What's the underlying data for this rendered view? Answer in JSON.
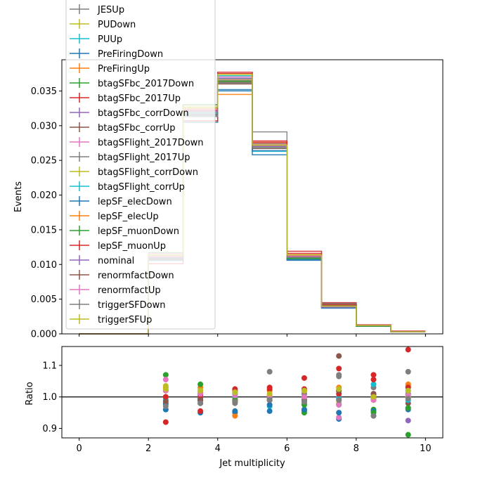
{
  "chart_data": [
    {
      "type": "line",
      "style": "step-histogram",
      "title": "",
      "xlabel": "",
      "ylabel": "Events",
      "xlim": [
        -0.5,
        10.5
      ],
      "ylim": [
        0.0,
        0.0395
      ],
      "yticks": [
        "0.000",
        "0.005",
        "0.010",
        "0.015",
        "0.020",
        "0.025",
        "0.030",
        "0.035"
      ],
      "bin_edges": [
        0,
        2,
        3,
        4,
        5,
        6,
        7,
        8,
        9,
        10
      ],
      "legend_placement": "upper-left",
      "series": [
        {
          "name": "JESUp",
          "color": "#7f7f7f",
          "values": [
            0.0,
            0.0112,
            0.0318,
            0.0361,
            0.0291,
            0.0114,
            0.0042,
            0.0012,
            0.0003
          ]
        },
        {
          "name": "PUDown",
          "color": "#bcbd22",
          "values": [
            0.0,
            0.011,
            0.0325,
            0.0372,
            0.0272,
            0.0111,
            0.0039,
            0.0012,
            0.0003
          ]
        },
        {
          "name": "PUUp",
          "color": "#17becf",
          "values": [
            0.0,
            0.0106,
            0.0315,
            0.0372,
            0.0263,
            0.0108,
            0.004,
            0.0012,
            0.0003
          ]
        },
        {
          "name": "PreFiringDown",
          "color": "#1f77b4",
          "values": [
            0.0,
            0.0106,
            0.0305,
            0.035,
            0.0258,
            0.0106,
            0.0037,
            0.0011,
            0.0003
          ]
        },
        {
          "name": "PreFiringUp",
          "color": "#ff7f0e",
          "values": [
            0.0,
            0.0114,
            0.033,
            0.0345,
            0.027,
            0.0112,
            0.0042,
            0.0012,
            0.0003
          ]
        },
        {
          "name": "btagSFbc_2017Down",
          "color": "#2ca02c",
          "values": [
            0.0,
            0.0117,
            0.033,
            0.0365,
            0.027,
            0.0108,
            0.004,
            0.0012,
            0.0003
          ]
        },
        {
          "name": "btagSFbc_2017Up",
          "color": "#d62728",
          "values": [
            0.0,
            0.0101,
            0.0307,
            0.0375,
            0.0278,
            0.0119,
            0.0045,
            0.0013,
            0.0004
          ]
        },
        {
          "name": "btagSFbc_corrDown",
          "color": "#9467bd",
          "values": [
            0.0,
            0.0113,
            0.0322,
            0.0368,
            0.027,
            0.0111,
            0.0038,
            0.0011,
            0.0003
          ]
        },
        {
          "name": "btagSFbc_corrUp",
          "color": "#8c564b",
          "values": [
            0.0,
            0.0109,
            0.0318,
            0.0363,
            0.0274,
            0.0113,
            0.0044,
            0.0012,
            0.0003
          ]
        },
        {
          "name": "btagSFlight_2017Down",
          "color": "#e377c2",
          "values": [
            0.0,
            0.0116,
            0.0322,
            0.0366,
            0.0268,
            0.011,
            0.0038,
            0.0012,
            0.0003
          ]
        },
        {
          "name": "btagSFlight_2017Up",
          "color": "#7f7f7f",
          "values": [
            0.0,
            0.0107,
            0.0314,
            0.0362,
            0.027,
            0.0112,
            0.0043,
            0.0012,
            0.0003
          ]
        },
        {
          "name": "btagSFlight_corrDown",
          "color": "#bcbd22",
          "values": [
            0.0,
            0.0114,
            0.0326,
            0.0367,
            0.0272,
            0.0113,
            0.0041,
            0.0012,
            0.0003
          ]
        },
        {
          "name": "btagSFlight_corrUp",
          "color": "#17becf",
          "values": [
            0.0,
            0.0109,
            0.0318,
            0.0368,
            0.0268,
            0.011,
            0.004,
            0.0012,
            0.0003
          ]
        },
        {
          "name": "lepSF_elecDown",
          "color": "#1f77b4",
          "values": [
            0.0,
            0.0108,
            0.0316,
            0.0352,
            0.0264,
            0.0107,
            0.0038,
            0.0011,
            0.0003
          ]
        },
        {
          "name": "lepSF_elecUp",
          "color": "#ff7f0e",
          "values": [
            0.0,
            0.0112,
            0.0324,
            0.0374,
            0.0276,
            0.0114,
            0.0041,
            0.0012,
            0.0003
          ]
        },
        {
          "name": "lepSF_muonDown",
          "color": "#2ca02c",
          "values": [
            0.0,
            0.011,
            0.032,
            0.0364,
            0.0268,
            0.0109,
            0.0039,
            0.0011,
            0.0003
          ]
        },
        {
          "name": "lepSF_muonUp",
          "color": "#d62728",
          "values": [
            0.0,
            0.011,
            0.0322,
            0.0377,
            0.0276,
            0.0116,
            0.0042,
            0.0012,
            0.0003
          ]
        },
        {
          "name": "nominal",
          "color": "#9467bd",
          "values": [
            0.0,
            0.011,
            0.032,
            0.0368,
            0.027,
            0.0112,
            0.004,
            0.0012,
            0.0003
          ]
        },
        {
          "name": "renormfactDown",
          "color": "#8c564b",
          "values": [
            0.0,
            0.0108,
            0.0316,
            0.036,
            0.0267,
            0.0111,
            0.0041,
            0.0012,
            0.0003
          ]
        },
        {
          "name": "renormfactUp",
          "color": "#e377c2",
          "values": [
            0.0,
            0.0112,
            0.0323,
            0.037,
            0.0272,
            0.0112,
            0.0039,
            0.0012,
            0.0003
          ]
        },
        {
          "name": "triggerSFDown",
          "color": "#7f7f7f",
          "values": [
            0.0,
            0.0107,
            0.0313,
            0.0362,
            0.0268,
            0.011,
            0.004,
            0.0012,
            0.0003
          ]
        },
        {
          "name": "triggerSFUp",
          "color": "#bcbd22",
          "values": [
            0.0,
            0.0113,
            0.0327,
            0.0374,
            0.0272,
            0.0114,
            0.004,
            0.0012,
            0.0003
          ]
        }
      ]
    },
    {
      "type": "scatter",
      "title": "",
      "xlabel": "Jet multiplicity",
      "ylabel": "Ratio",
      "xlim": [
        -0.5,
        10.5
      ],
      "ylim": [
        0.87,
        1.16
      ],
      "xticks": [
        "0",
        "2",
        "4",
        "6",
        "8",
        "10"
      ],
      "yticks": [
        "0.9",
        "1.0",
        "1.1"
      ],
      "reference_line": 1.0,
      "x": [
        2.5,
        3.5,
        4.5,
        5.5,
        6.5,
        7.5,
        8.5,
        9.5
      ],
      "series": [
        {
          "color": "#7f7f7f",
          "values": [
            1.02,
            0.99,
            0.98,
            1.08,
            1.01,
            1.07,
            1.03,
            1.08
          ]
        },
        {
          "color": "#bcbd22",
          "values": [
            1.0,
            1.02,
            1.01,
            1.0,
            0.99,
            0.98,
            0.99,
            1.0
          ]
        },
        {
          "color": "#17becf",
          "values": [
            0.96,
            0.98,
            1.01,
            0.97,
            0.96,
            1.0,
            1.04,
            1.02
          ]
        },
        {
          "color": "#1f77b4",
          "values": [
            0.96,
            0.95,
            0.95,
            0.955,
            0.955,
            0.93,
            0.94,
            0.96
          ]
        },
        {
          "color": "#ff7f0e",
          "values": [
            1.03,
            1.03,
            0.94,
            1.0,
            1.0,
            1.03,
            0.99,
            1.04
          ]
        },
        {
          "color": "#2ca02c",
          "values": [
            1.07,
            1.04,
            0.99,
            1.0,
            0.95,
            0.99,
            0.96,
            0.88
          ]
        },
        {
          "color": "#d62728",
          "values": [
            0.92,
            0.955,
            1.02,
            1.03,
            1.06,
            1.09,
            1.07,
            1.15
          ]
        },
        {
          "color": "#9467bd",
          "values": [
            1.0,
            1.0,
            1.0,
            1.0,
            1.0,
            1.0,
            1.0,
            0.925
          ]
        },
        {
          "color": "#8c564b",
          "values": [
            0.99,
            0.995,
            0.99,
            1.02,
            1.0,
            1.13,
            1.01,
            0.98
          ]
        },
        {
          "color": "#e377c2",
          "values": [
            1.055,
            1.01,
            0.995,
            0.99,
            0.98,
            0.935,
            0.995,
            1.0
          ]
        },
        {
          "color": "#7f7f7f",
          "values": [
            0.975,
            0.98,
            0.985,
            0.995,
            0.99,
            1.065,
            1.0,
            1.01
          ]
        },
        {
          "color": "#bcbd22",
          "values": [
            1.035,
            1.02,
            0.995,
            1.005,
            1.02,
            1.02,
            1.005,
            1.0
          ]
        },
        {
          "color": "#17becf",
          "values": [
            0.99,
            0.99,
            1.0,
            0.99,
            0.985,
            0.995,
            0.995,
            0.99
          ]
        },
        {
          "color": "#1f77b4",
          "values": [
            0.98,
            0.99,
            0.955,
            0.975,
            0.96,
            0.95,
            0.955,
            0.965
          ]
        },
        {
          "color": "#ff7f0e",
          "values": [
            1.02,
            1.015,
            1.015,
            1.02,
            1.02,
            1.02,
            1.005,
            1.035
          ]
        },
        {
          "color": "#2ca02c",
          "values": [
            1.0,
            0.99,
            0.99,
            0.99,
            0.975,
            0.975,
            0.95,
            0.965
          ]
        },
        {
          "color": "#d62728",
          "values": [
            1.0,
            1.005,
            1.025,
            1.025,
            1.025,
            1.01,
            1.055,
            1.03
          ]
        },
        {
          "color": "#8c564b",
          "values": [
            0.985,
            0.99,
            0.985,
            0.99,
            0.99,
            1.02,
            1.01,
            1.005
          ]
        },
        {
          "color": "#e377c2",
          "values": [
            1.02,
            1.01,
            1.005,
            1.005,
            1.0,
            0.975,
            0.99,
            1.005
          ]
        },
        {
          "color": "#7f7f7f",
          "values": [
            0.97,
            0.98,
            0.985,
            0.99,
            0.985,
            0.99,
            0.94,
            0.995
          ]
        },
        {
          "color": "#bcbd22",
          "values": [
            1.025,
            1.02,
            1.015,
            1.01,
            1.02,
            1.025,
            1.0,
            1.02
          ]
        }
      ]
    }
  ]
}
